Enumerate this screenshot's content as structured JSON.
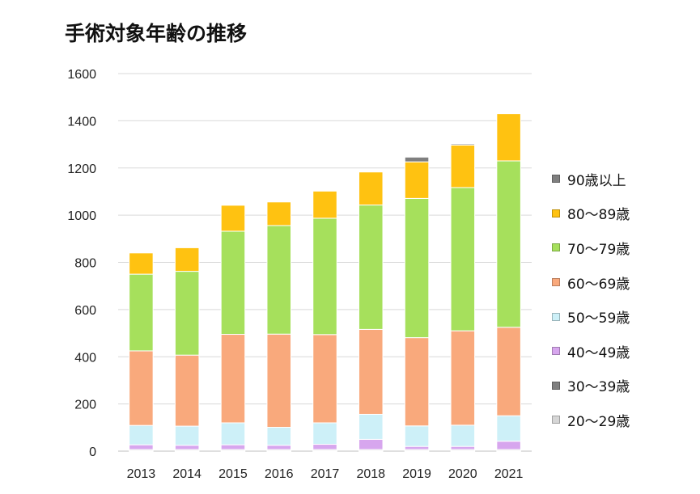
{
  "chart_data": {
    "type": "bar",
    "stacked": true,
    "title": "手術対象年齢の推移",
    "categories": [
      "2013",
      "2014",
      "2015",
      "2016",
      "2017",
      "2018",
      "2019",
      "2020",
      "2021"
    ],
    "ylim": [
      0,
      1600
    ],
    "yticks": [
      "0",
      "200",
      "400",
      "600",
      "800",
      "1000",
      "1200",
      "1400",
      "1600"
    ],
    "grid": true,
    "legend_position": "right",
    "series": [
      {
        "name": "20〜29歳",
        "color": "#d6d6d6",
        "values": [
          3,
          3,
          3,
          3,
          3,
          3,
          3,
          3,
          3
        ]
      },
      {
        "name": "30〜39歳",
        "color": "#7f7f7f",
        "values": [
          4,
          4,
          4,
          4,
          4,
          4,
          4,
          4,
          4
        ]
      },
      {
        "name": "40〜49歳",
        "color": "#d7a6ee",
        "values": [
          20,
          18,
          20,
          18,
          22,
          43,
          13,
          13,
          35
        ]
      },
      {
        "name": "50〜59歳",
        "color": "#cdf0f8",
        "values": [
          82,
          81,
          93,
          76,
          91,
          106,
          87,
          90,
          108
        ]
      },
      {
        "name": "60〜69歳",
        "color": "#f9a97c",
        "values": [
          316,
          301,
          375,
          395,
          374,
          360,
          374,
          400,
          375
        ]
      },
      {
        "name": "70〜79歳",
        "color": "#a6e05c",
        "values": [
          325,
          355,
          437,
          460,
          493,
          527,
          590,
          607,
          705
        ]
      },
      {
        "name": "80〜89歳",
        "color": "#ffc211",
        "values": [
          90,
          100,
          110,
          100,
          115,
          140,
          155,
          180,
          200
        ]
      },
      {
        "name": "90歳以上",
        "color": "#7f7f7f",
        "values": [
          0,
          0,
          0,
          0,
          0,
          0,
          20,
          5,
          0
        ]
      }
    ]
  },
  "legend": {
    "items": [
      {
        "label": "90歳以上",
        "color": "#7f7f7f"
      },
      {
        "label": "80〜89歳",
        "color": "#ffc211"
      },
      {
        "label": "70〜79歳",
        "color": "#a6e05c"
      },
      {
        "label": "60〜69歳",
        "color": "#f9a97c"
      },
      {
        "label": "50〜59歳",
        "color": "#cdf0f8"
      },
      {
        "label": "40〜49歳",
        "color": "#d7a6ee"
      },
      {
        "label": "30〜39歳",
        "color": "#7f7f7f"
      },
      {
        "label": "20〜29歳",
        "color": "#d6d6d6"
      }
    ]
  }
}
